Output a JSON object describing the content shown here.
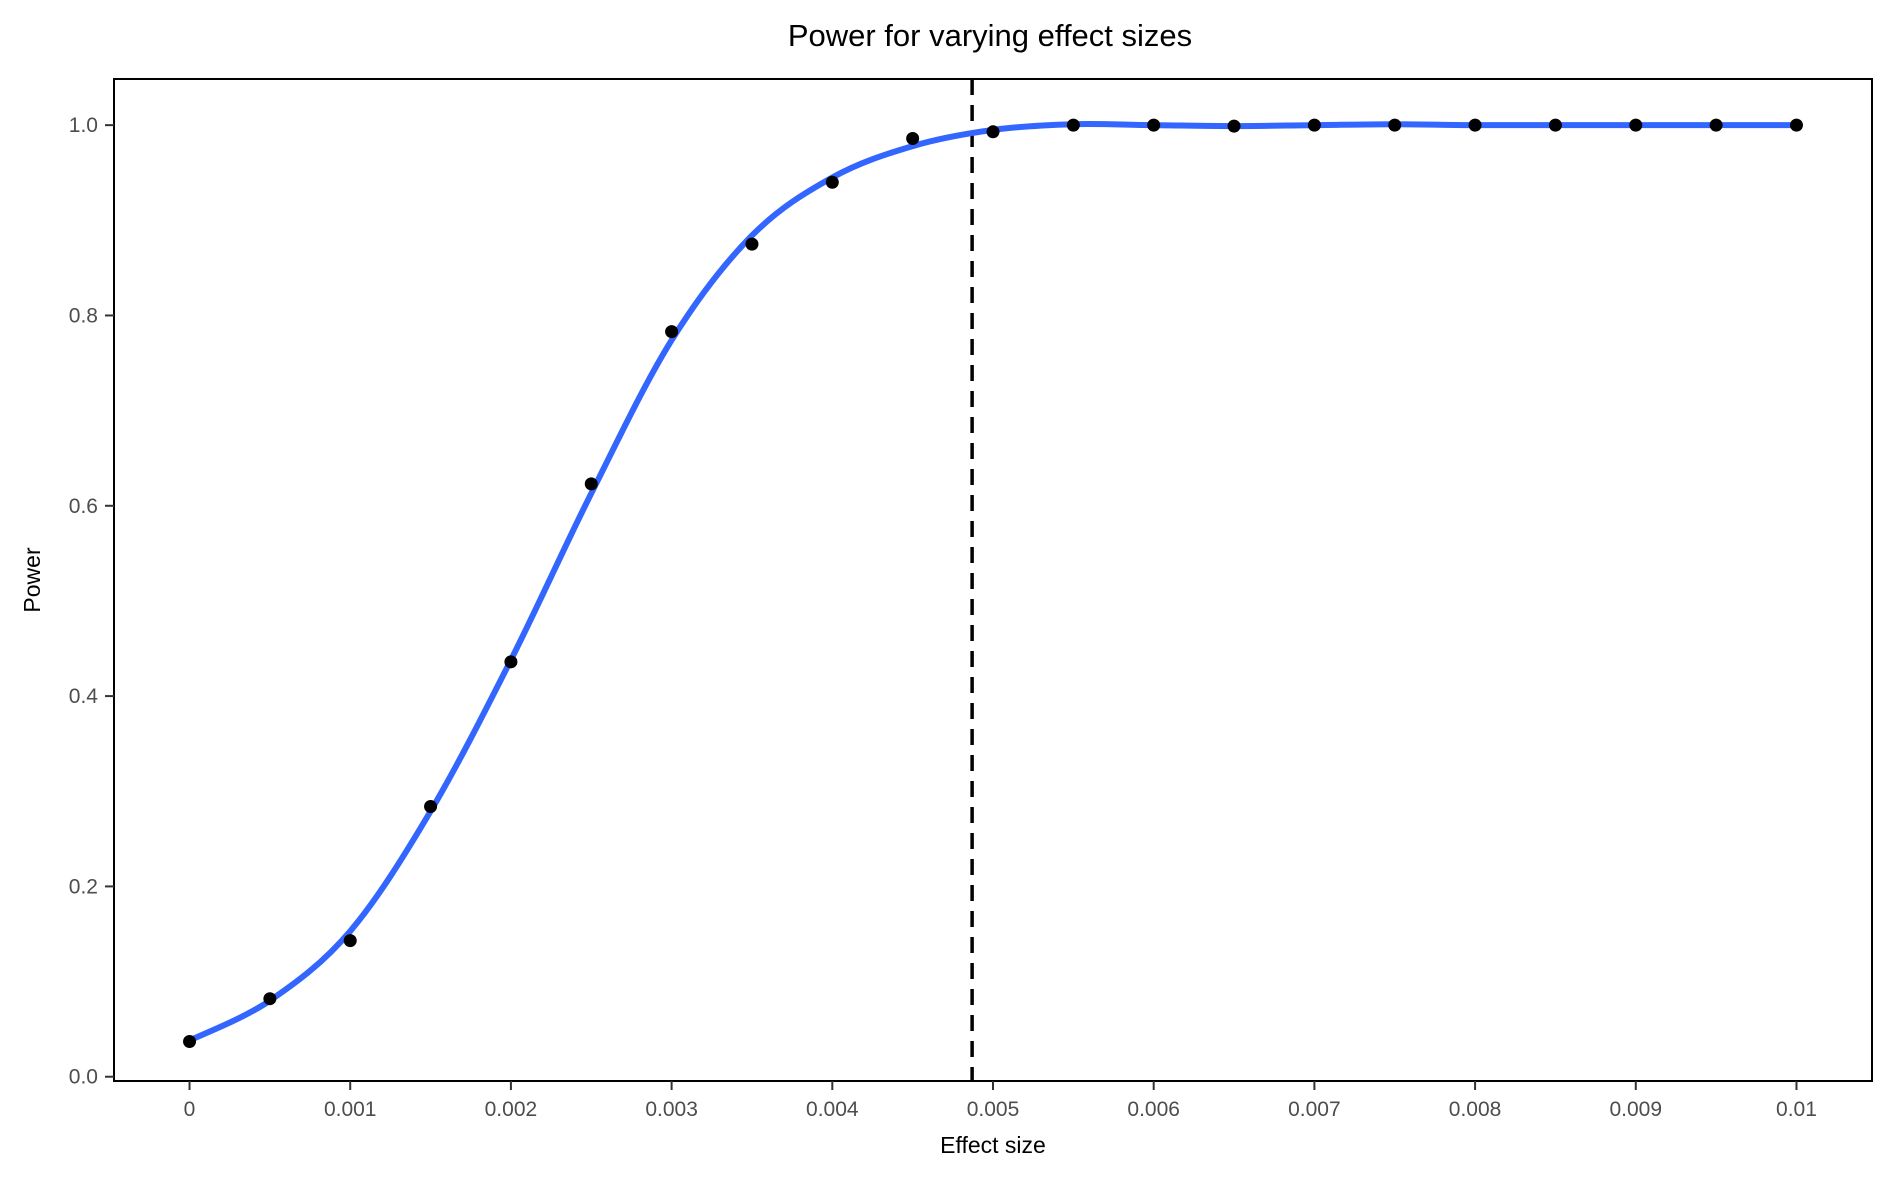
{
  "chart_data": {
    "type": "line",
    "title": "Power for varying effect sizes",
    "xlabel": "Effect size",
    "ylabel": "Power",
    "xlim": [
      -0.00047,
      0.01047
    ],
    "ylim": [
      -0.0045,
      1.0485
    ],
    "x_ticks": [
      0,
      0.001,
      0.002,
      0.003,
      0.004,
      0.005,
      0.006,
      0.007,
      0.008,
      0.009,
      0.01
    ],
    "x_tick_labels": [
      "0",
      "0.001",
      "0.002",
      "0.003",
      "0.004",
      "0.005",
      "0.006",
      "0.007",
      "0.008",
      "0.009",
      "0.01"
    ],
    "y_ticks": [
      0,
      0.2,
      0.4,
      0.6,
      0.8,
      1.0
    ],
    "y_tick_labels": [
      "0.0",
      "0.2",
      "0.4",
      "0.6",
      "0.8",
      "1.0"
    ],
    "grid": false,
    "points": {
      "x": [
        0,
        0.0005,
        0.001,
        0.0015,
        0.002,
        0.0025,
        0.003,
        0.0035,
        0.004,
        0.0045,
        0.005,
        0.0055,
        0.006,
        0.0065,
        0.007,
        0.0075,
        0.008,
        0.0085,
        0.009,
        0.0095,
        0.01
      ],
      "y": [
        0.037,
        0.082,
        0.143,
        0.284,
        0.436,
        0.623,
        0.783,
        0.875,
        0.94,
        0.986,
        0.993,
        1.0,
        1.0,
        0.999,
        1.0,
        1.0,
        1.0,
        1.0,
        1.0,
        1.0,
        1.0
      ],
      "color": "#000000"
    },
    "smooth_line": {
      "x": [
        0,
        0.0005,
        0.001,
        0.0015,
        0.002,
        0.0025,
        0.003,
        0.0035,
        0.004,
        0.0045,
        0.005,
        0.0055,
        0.006,
        0.0065,
        0.007,
        0.0075,
        0.008,
        0.0085,
        0.009,
        0.0095,
        0.01
      ],
      "y": [
        0.038,
        0.08,
        0.153,
        0.279,
        0.438,
        0.613,
        0.774,
        0.884,
        0.945,
        0.978,
        0.995,
        1.001,
        1.0,
        0.999,
        1.0,
        1.001,
        1.0,
        1.0,
        1.0,
        1.0,
        1.0
      ],
      "color": "#3366ff"
    },
    "reference_line": {
      "x": 0.00487,
      "style": "dashed",
      "color": "#000000"
    }
  }
}
